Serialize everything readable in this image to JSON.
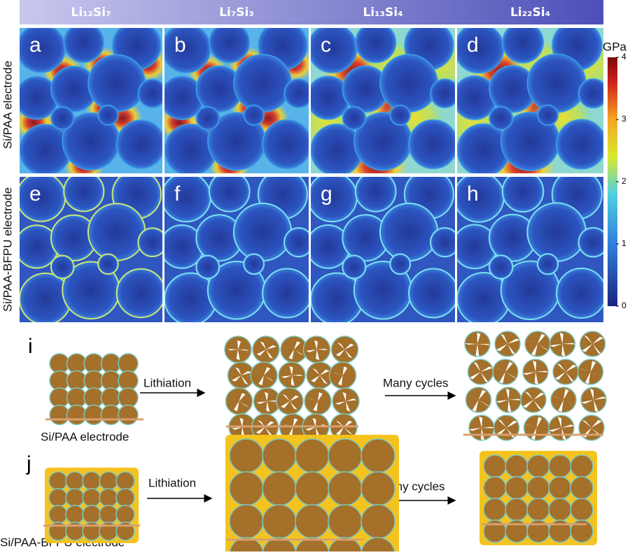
{
  "columns": [
    "Li₁₂Si₇",
    "Li₇Si₃",
    "Li₁₃Si₄",
    "Li₂₂Si₄"
  ],
  "rows": [
    "Si/PAA electrode",
    "Si/PAA-BFPU electrode"
  ],
  "panels": [
    "a",
    "b",
    "c",
    "d",
    "e",
    "f",
    "g",
    "h"
  ],
  "colorbar": {
    "unit": "GPa",
    "range": [
      0,
      4
    ],
    "ticks": [
      0,
      1,
      2,
      3,
      4
    ]
  },
  "schematic": {
    "i": {
      "label": "i",
      "step1": "Lithiation",
      "step2": "Many cycles",
      "caption": "Si/PAA electrode"
    },
    "j": {
      "label": "j",
      "step1": "Lithiation",
      "step2": "Many cycles",
      "caption": "Si/PAA-BFPU electrode"
    }
  }
}
